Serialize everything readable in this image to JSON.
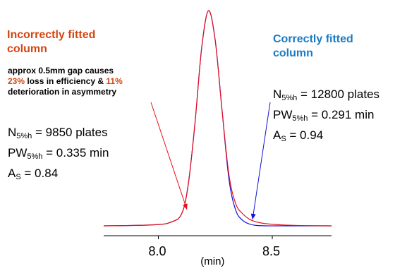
{
  "chart_data": {
    "type": "line",
    "xlabel": "(min)",
    "xlim": [
      7.76,
      8.76
    ],
    "x_ticks": [
      "8.0",
      "8.5"
    ],
    "grid": false,
    "series": [
      {
        "name": "Incorrectly fitted column",
        "color": "#e8101a",
        "x": [
          7.76,
          7.9,
          8.0,
          8.05,
          8.1,
          8.13,
          8.16,
          8.19,
          8.22,
          8.25,
          8.28,
          8.31,
          8.34,
          8.37,
          8.4,
          8.43,
          8.47,
          8.55,
          8.65,
          8.76
        ],
        "y": [
          0.02,
          0.022,
          0.026,
          0.035,
          0.07,
          0.2,
          0.48,
          0.83,
          1.0,
          0.86,
          0.54,
          0.25,
          0.12,
          0.075,
          0.05,
          0.038,
          0.03,
          0.024,
          0.021,
          0.02
        ]
      },
      {
        "name": "Correctly fitted column",
        "color": "#1010d8",
        "x": [
          7.76,
          7.9,
          8.0,
          8.05,
          8.1,
          8.13,
          8.16,
          8.19,
          8.22,
          8.25,
          8.28,
          8.31,
          8.34,
          8.37,
          8.4,
          8.43,
          8.47,
          8.55,
          8.65,
          8.76
        ],
        "y": [
          0.02,
          0.022,
          0.026,
          0.035,
          0.07,
          0.2,
          0.48,
          0.83,
          1.0,
          0.86,
          0.54,
          0.23,
          0.09,
          0.045,
          0.028,
          0.022,
          0.02,
          0.02,
          0.02,
          0.02
        ]
      }
    ]
  },
  "annotations": {
    "left_title": [
      "Incorrectly fitted",
      "column"
    ],
    "left_title_color": "#d44611",
    "right_title": [
      "Correctly fitted",
      "column"
    ],
    "right_title_color": "#1a7bc4",
    "highlight_color": "#d44611",
    "note_line1": "approx 0.5mm gap causes",
    "note_pct1": "23%",
    "note_mid": " loss in efficiency & ",
    "note_pct2": "11%",
    "note_line3": "deterioration in asymmetry",
    "left_stats": {
      "n_sym": "N",
      "n_sub": "5%h",
      "n_val": " = 9850 plates",
      "pw_sym": "PW",
      "pw_sub": "5%h",
      "pw_val": " = 0.335 min",
      "as_sym": "A",
      "as_sub": "S",
      "as_val": " = 0.84"
    },
    "right_stats": {
      "n_sym": "N",
      "n_sub": "5%h",
      "n_val": " = 12800 plates",
      "pw_sym": "PW",
      "pw_sub": "5%h",
      "pw_val": " = 0.291 min",
      "as_sym": "A",
      "as_sub": "S",
      "as_val": " = 0.94"
    },
    "arrow_left_color": "#e8101a",
    "arrow_right_color": "#1010d8"
  }
}
